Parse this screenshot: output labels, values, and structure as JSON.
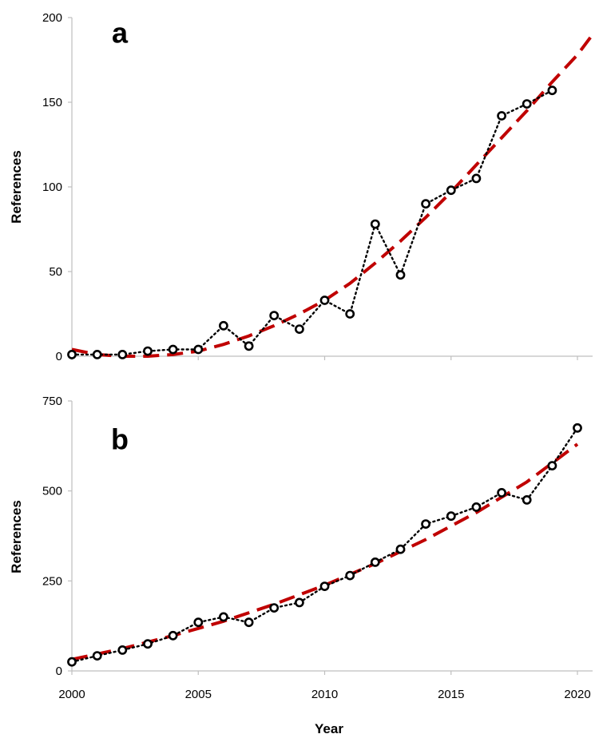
{
  "figure": {
    "xlabel": "Year",
    "x_ticks": [
      "2000",
      "2005",
      "2010",
      "2015",
      "2020"
    ]
  },
  "chart_data": [
    {
      "type": "line",
      "panel": "a",
      "xlabel": "",
      "ylabel": "References",
      "xlim": [
        2000,
        2020.6
      ],
      "ylim": [
        0,
        200
      ],
      "y_ticks": [
        "0",
        "50",
        "100",
        "150",
        "200"
      ],
      "grid": false,
      "series": [
        {
          "style": "dotted black line with open circle markers",
          "color": "#000000",
          "x": [
            2000,
            2001,
            2002,
            2003,
            2004,
            2005,
            2006,
            2007,
            2008,
            2009,
            2010,
            2011,
            2012,
            2013,
            2014,
            2015,
            2016,
            2017,
            2018,
            2019
          ],
          "y": [
            1,
            1,
            1,
            3,
            4,
            4,
            18,
            6,
            24,
            16,
            33,
            25,
            78,
            48,
            90,
            98,
            105,
            142,
            149,
            157
          ]
        },
        {
          "style": "dashed red trend line",
          "color": "#c00000",
          "x": [
            2000,
            2001,
            2002,
            2003,
            2004,
            2005,
            2006,
            2007,
            2008,
            2009,
            2010,
            2011,
            2012,
            2013,
            2014,
            2015,
            2016,
            2017,
            2018,
            2019,
            2020,
            2020.6
          ],
          "y": [
            4,
            1,
            0,
            0,
            1,
            3,
            7,
            12,
            18,
            25,
            33,
            43,
            55,
            68,
            82,
            97,
            113,
            129,
            145,
            162,
            178,
            190
          ]
        }
      ]
    },
    {
      "type": "line",
      "panel": "b",
      "xlabel": "Year",
      "ylabel": "References",
      "xlim": [
        2000,
        2020.6
      ],
      "ylim": [
        0,
        750
      ],
      "y_ticks": [
        "0",
        "250",
        "500",
        "750"
      ],
      "grid": false,
      "series": [
        {
          "style": "dotted black line with open circle markers",
          "color": "#000000",
          "x": [
            2000,
            2001,
            2002,
            2003,
            2004,
            2005,
            2006,
            2007,
            2008,
            2009,
            2010,
            2011,
            2012,
            2013,
            2014,
            2015,
            2016,
            2017,
            2018,
            2019,
            2020
          ],
          "y": [
            25,
            42,
            58,
            75,
            98,
            135,
            150,
            135,
            175,
            190,
            235,
            265,
            302,
            338,
            408,
            430,
            455,
            495,
            475,
            570,
            675
          ]
        },
        {
          "style": "dashed red trend line",
          "color": "#c00000",
          "x": [
            2000,
            2002,
            2004,
            2006,
            2008,
            2010,
            2012,
            2014,
            2016,
            2018,
            2020
          ],
          "y": [
            32,
            62,
            98,
            138,
            185,
            238,
            298,
            365,
            440,
            525,
            630
          ]
        }
      ]
    }
  ]
}
